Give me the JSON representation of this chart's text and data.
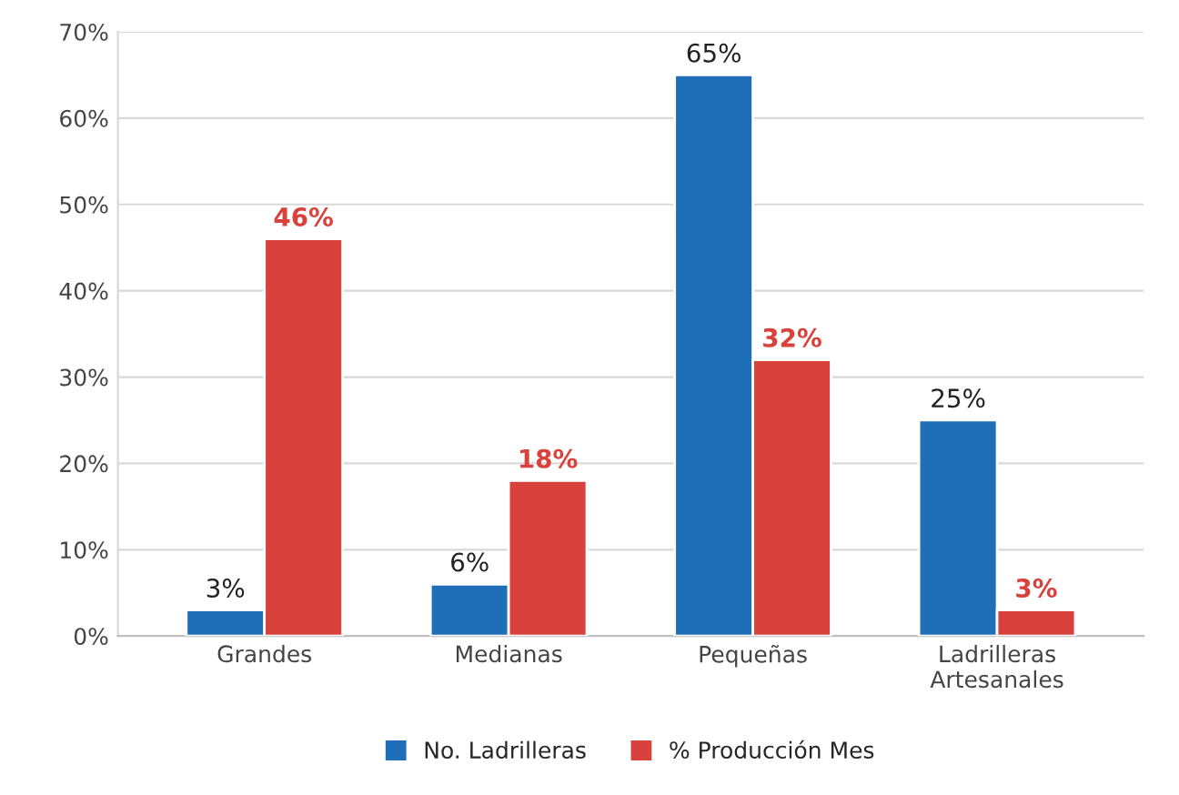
{
  "chart_data": {
    "type": "bar",
    "categories": [
      "Grandes",
      "Medianas",
      "Pequeñas",
      "Ladrilleras\nArtesanales"
    ],
    "series": [
      {
        "name": "No. Ladrilleras",
        "color": "#1f6fb8",
        "values": [
          3,
          6,
          65,
          25
        ],
        "value_labels": [
          "3%",
          "6%",
          "65%",
          "25%"
        ]
      },
      {
        "name": "% Producción Mes",
        "color": "#d9413c",
        "values": [
          46,
          18,
          32,
          3
        ],
        "value_labels": [
          "46%",
          "18%",
          "32%",
          "3%"
        ]
      }
    ],
    "ylim": [
      0,
      70
    ],
    "yticks": [
      {
        "value": 0,
        "label": "0%"
      },
      {
        "value": 10,
        "label": "10%"
      },
      {
        "value": 20,
        "label": "20%"
      },
      {
        "value": 30,
        "label": "30%"
      },
      {
        "value": 40,
        "label": "40%"
      },
      {
        "value": 50,
        "label": "50%"
      },
      {
        "value": 60,
        "label": "60%"
      },
      {
        "value": 70,
        "label": "70%"
      }
    ],
    "grid": "y",
    "legend": "bottom"
  }
}
